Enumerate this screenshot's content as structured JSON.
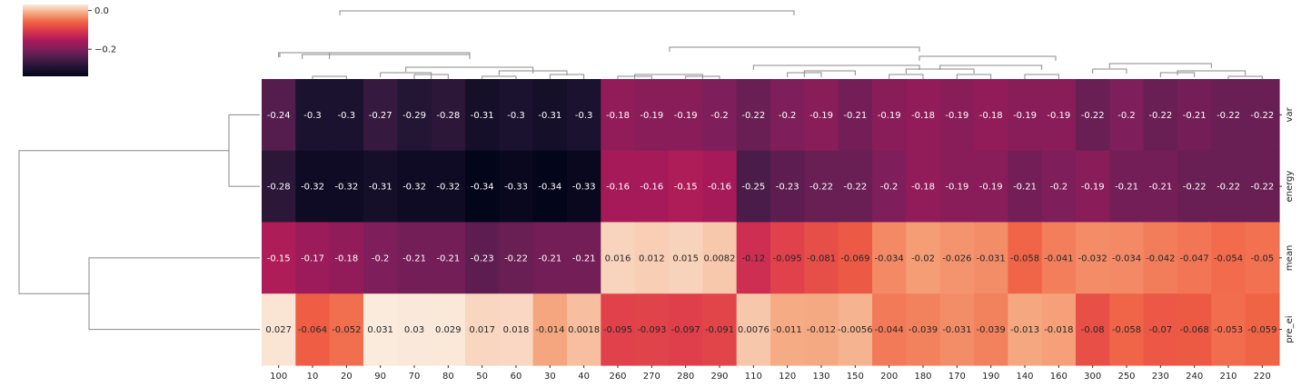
{
  "chart_data": {
    "type": "heatmap",
    "columns": [
      "100",
      "10",
      "20",
      "90",
      "70",
      "80",
      "50",
      "60",
      "30",
      "40",
      "260",
      "270",
      "280",
      "290",
      "110",
      "120",
      "130",
      "150",
      "200",
      "180",
      "170",
      "190",
      "140",
      "160",
      "300",
      "250",
      "230",
      "240",
      "210",
      "220"
    ],
    "rows": [
      "var",
      "energy",
      "mean",
      "pre_ei"
    ],
    "values": [
      [
        -0.24,
        -0.3,
        -0.3,
        -0.27,
        -0.29,
        -0.28,
        -0.31,
        -0.3,
        -0.31,
        -0.3,
        -0.18,
        -0.19,
        -0.19,
        -0.2,
        -0.22,
        -0.2,
        -0.19,
        -0.21,
        -0.19,
        -0.18,
        -0.19,
        -0.18,
        -0.19,
        -0.19,
        -0.22,
        -0.2,
        -0.22,
        -0.21,
        -0.22,
        -0.22
      ],
      [
        -0.28,
        -0.32,
        -0.32,
        -0.31,
        -0.32,
        -0.32,
        -0.34,
        -0.33,
        -0.34,
        -0.33,
        -0.16,
        -0.16,
        -0.15,
        -0.16,
        -0.25,
        -0.23,
        -0.22,
        -0.22,
        -0.2,
        -0.18,
        -0.19,
        -0.19,
        -0.21,
        -0.2,
        -0.19,
        -0.21,
        -0.21,
        -0.22,
        -0.22,
        -0.22
      ],
      [
        -0.15,
        -0.17,
        -0.18,
        -0.2,
        -0.21,
        -0.21,
        -0.23,
        -0.22,
        -0.21,
        -0.21,
        0.016,
        0.012,
        0.015,
        0.0082,
        -0.12,
        -0.095,
        -0.081,
        -0.069,
        -0.034,
        -0.02,
        -0.026,
        -0.031,
        -0.058,
        -0.041,
        -0.032,
        -0.034,
        -0.042,
        -0.047,
        -0.054,
        -0.05
      ],
      [
        0.027,
        -0.064,
        -0.052,
        0.031,
        0.03,
        0.029,
        0.017,
        0.018,
        -0.014,
        0.0018,
        -0.095,
        -0.093,
        -0.097,
        -0.091,
        0.0076,
        -0.011,
        -0.012,
        -0.0056,
        -0.044,
        -0.039,
        -0.031,
        -0.039,
        -0.013,
        -0.018,
        -0.08,
        -0.058,
        -0.07,
        -0.068,
        -0.053,
        -0.059
      ]
    ],
    "colormap": "rocket",
    "colorbar": {
      "min": -0.34,
      "max": 0.031,
      "ticks": [
        0.0,
        -0.2
      ],
      "tick_labels": [
        "0.0",
        "−0.2"
      ],
      "placement": "top-left"
    },
    "annotations": "cell values shown",
    "row_labels_side": "right",
    "dendrograms": [
      "top (columns)",
      "left (rows)"
    ],
    "title": "",
    "xlabel": "",
    "ylabel": ""
  }
}
